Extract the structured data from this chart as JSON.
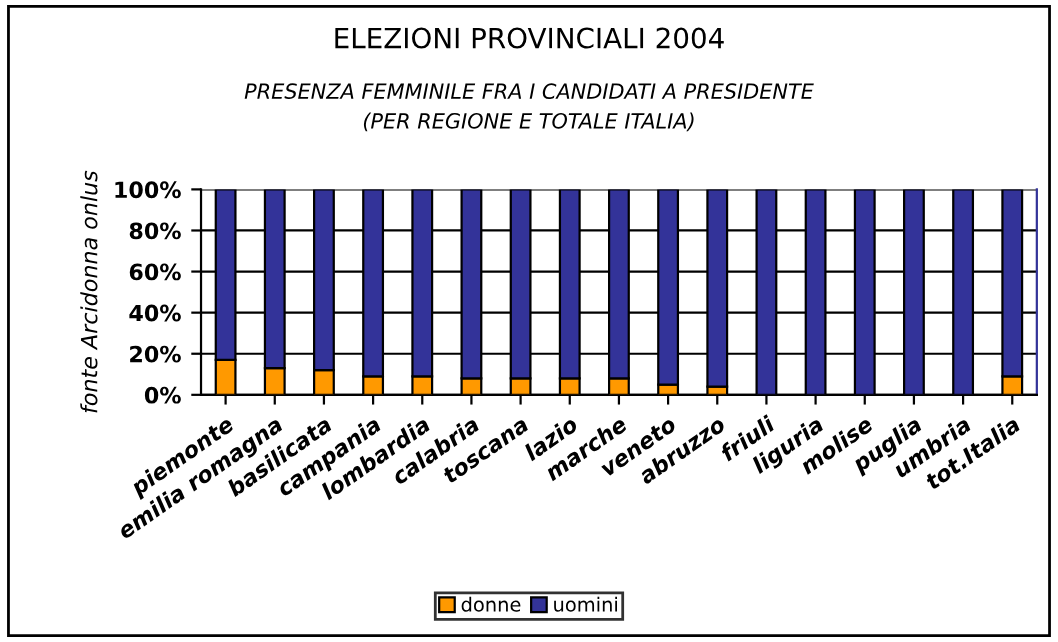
{
  "chart_data": {
    "type": "bar",
    "stacked": true,
    "title": "ELEZIONI PROVINCIALI 2004",
    "subtitle": "PRESENZA FEMMINILE FRA I CANDIDATI A PRESIDENTE\n(PER REGIONE E TOTALE ITALIA)",
    "ylabel": "fonte Arcidonna onlus",
    "categories": [
      "piemonte",
      "emilia romagna",
      "basilicata",
      "campania",
      "lombardia",
      "calabria",
      "toscana",
      "lazio",
      "marche",
      "veneto",
      "abruzzo",
      "friuli",
      "liguria",
      "molise",
      "puglia",
      "umbria",
      "tot.Italia"
    ],
    "series": [
      {
        "name": "donne",
        "color": "#ff9900",
        "values": [
          17,
          13,
          12,
          9,
          9,
          8,
          8,
          8,
          8,
          5,
          4,
          0,
          0,
          0,
          0,
          0,
          9
        ]
      },
      {
        "name": "uomini",
        "color": "#333399",
        "values": [
          83,
          87,
          88,
          91,
          91,
          92,
          92,
          92,
          92,
          95,
          96,
          100,
          100,
          100,
          100,
          100,
          91
        ]
      }
    ],
    "ylim": [
      0,
      100
    ],
    "yticks": [
      {
        "value": 0,
        "label": "0%"
      },
      {
        "value": 20,
        "label": "20%"
      },
      {
        "value": 40,
        "label": "40%"
      },
      {
        "value": 60,
        "label": "60%"
      },
      {
        "value": 80,
        "label": "80%"
      },
      {
        "value": 100,
        "label": "100%"
      }
    ],
    "grid": "y",
    "legend": "bottom"
  }
}
